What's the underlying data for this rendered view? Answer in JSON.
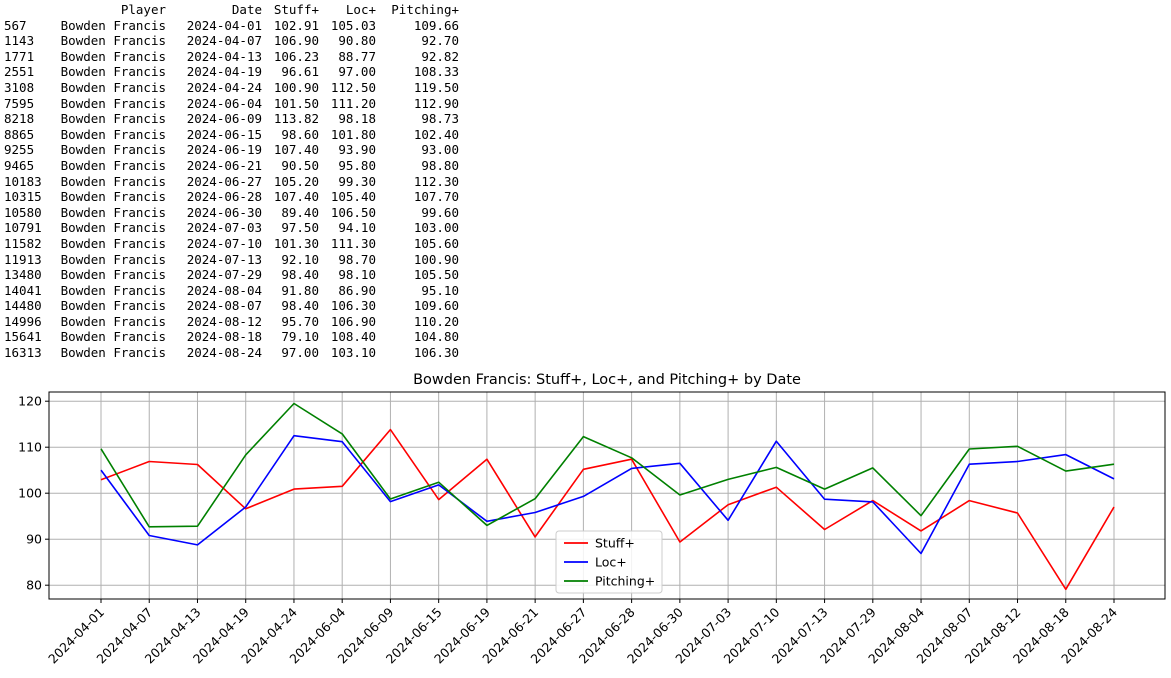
{
  "table": {
    "columns": [
      "",
      "Player",
      "Date",
      "Stuff+",
      "Loc+",
      "Pitching+"
    ],
    "rows": [
      [
        "567",
        "Bowden Francis",
        "2024-04-01",
        "102.91",
        "105.03",
        "109.66"
      ],
      [
        "1143",
        "Bowden Francis",
        "2024-04-07",
        "106.90",
        "90.80",
        "92.70"
      ],
      [
        "1771",
        "Bowden Francis",
        "2024-04-13",
        "106.23",
        "88.77",
        "92.82"
      ],
      [
        "2551",
        "Bowden Francis",
        "2024-04-19",
        "96.61",
        "97.00",
        "108.33"
      ],
      [
        "3108",
        "Bowden Francis",
        "2024-04-24",
        "100.90",
        "112.50",
        "119.50"
      ],
      [
        "7595",
        "Bowden Francis",
        "2024-06-04",
        "101.50",
        "111.20",
        "112.90"
      ],
      [
        "8218",
        "Bowden Francis",
        "2024-06-09",
        "113.82",
        "98.18",
        "98.73"
      ],
      [
        "8865",
        "Bowden Francis",
        "2024-06-15",
        "98.60",
        "101.80",
        "102.40"
      ],
      [
        "9255",
        "Bowden Francis",
        "2024-06-19",
        "107.40",
        "93.90",
        "93.00"
      ],
      [
        "9465",
        "Bowden Francis",
        "2024-06-21",
        "90.50",
        "95.80",
        "98.80"
      ],
      [
        "10183",
        "Bowden Francis",
        "2024-06-27",
        "105.20",
        "99.30",
        "112.30"
      ],
      [
        "10315",
        "Bowden Francis",
        "2024-06-28",
        "107.40",
        "105.40",
        "107.70"
      ],
      [
        "10580",
        "Bowden Francis",
        "2024-06-30",
        "89.40",
        "106.50",
        "99.60"
      ],
      [
        "10791",
        "Bowden Francis",
        "2024-07-03",
        "97.50",
        "94.10",
        "103.00"
      ],
      [
        "11582",
        "Bowden Francis",
        "2024-07-10",
        "101.30",
        "111.30",
        "105.60"
      ],
      [
        "11913",
        "Bowden Francis",
        "2024-07-13",
        "92.10",
        "98.70",
        "100.90"
      ],
      [
        "13480",
        "Bowden Francis",
        "2024-07-29",
        "98.40",
        "98.10",
        "105.50"
      ],
      [
        "14041",
        "Bowden Francis",
        "2024-08-04",
        "91.80",
        "86.90",
        "95.10"
      ],
      [
        "14480",
        "Bowden Francis",
        "2024-08-07",
        "98.40",
        "106.30",
        "109.60"
      ],
      [
        "14996",
        "Bowden Francis",
        "2024-08-12",
        "95.70",
        "106.90",
        "110.20"
      ],
      [
        "15641",
        "Bowden Francis",
        "2024-08-18",
        "79.10",
        "108.40",
        "104.80"
      ],
      [
        "16313",
        "Bowden Francis",
        "2024-08-24",
        "97.00",
        "103.10",
        "106.30"
      ]
    ]
  },
  "chart_data": {
    "type": "line",
    "title": "Bowden Francis: Stuff+, Loc+, and Pitching+ by Date",
    "xlabel": "",
    "ylabel": "",
    "categories": [
      "2024-04-01",
      "2024-04-07",
      "2024-04-13",
      "2024-04-19",
      "2024-04-24",
      "2024-06-04",
      "2024-06-09",
      "2024-06-15",
      "2024-06-19",
      "2024-06-21",
      "2024-06-27",
      "2024-06-28",
      "2024-06-30",
      "2024-07-03",
      "2024-07-10",
      "2024-07-13",
      "2024-07-29",
      "2024-08-04",
      "2024-08-07",
      "2024-08-12",
      "2024-08-18",
      "2024-08-24"
    ],
    "ylim": [
      77,
      122
    ],
    "yticks": [
      80,
      90,
      100,
      110,
      120
    ],
    "grid": true,
    "legend_position": "lower-center",
    "series": [
      {
        "name": "Stuff+",
        "color": "#ff0000",
        "values": [
          102.91,
          106.9,
          106.23,
          96.61,
          100.9,
          101.5,
          113.82,
          98.6,
          107.4,
          90.5,
          105.2,
          107.4,
          89.4,
          97.5,
          101.3,
          92.1,
          98.4,
          91.8,
          98.4,
          95.7,
          79.1,
          97.0
        ]
      },
      {
        "name": "Loc+",
        "color": "#0000ff",
        "values": [
          105.03,
          90.8,
          88.77,
          97.0,
          112.5,
          111.2,
          98.18,
          101.8,
          93.9,
          95.8,
          99.3,
          105.4,
          106.5,
          94.1,
          111.3,
          98.7,
          98.1,
          86.9,
          106.3,
          106.9,
          108.4,
          103.1
        ]
      },
      {
        "name": "Pitching+",
        "color": "#008000",
        "values": [
          109.66,
          92.7,
          92.82,
          108.33,
          119.5,
          112.9,
          98.73,
          102.4,
          93.0,
          98.8,
          112.3,
          107.7,
          99.6,
          103.0,
          105.6,
          100.9,
          105.5,
          95.1,
          109.6,
          110.2,
          104.8,
          106.3
        ]
      }
    ]
  }
}
